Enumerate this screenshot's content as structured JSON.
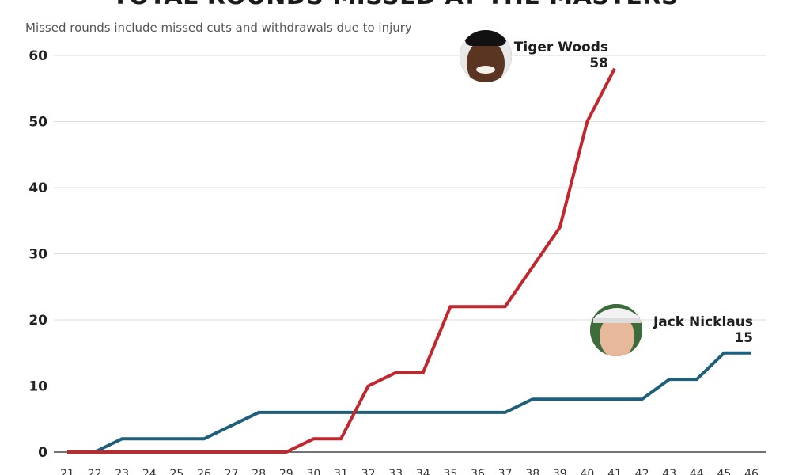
{
  "chart_data": {
    "type": "line",
    "title": "TOTAL ROUNDS MISSED AT THE MASTERS",
    "subtitle": "Missed rounds include missed cuts and withdrawals due to injury",
    "x": [
      21,
      22,
      23,
      24,
      25,
      26,
      27,
      28,
      29,
      30,
      31,
      32,
      33,
      34,
      35,
      36,
      37,
      38,
      39,
      40,
      41,
      42,
      43,
      44,
      45,
      46
    ],
    "ylim": [
      0,
      60
    ],
    "yticks": [
      0,
      10,
      20,
      30,
      40,
      50,
      60
    ],
    "grid": true,
    "series": [
      {
        "name": "Tiger Woods",
        "color": "#c1272d",
        "end_label": "58",
        "icon": "tiger-woods-avatar",
        "values": [
          0,
          0,
          0,
          0,
          0,
          0,
          0,
          0,
          0,
          2,
          2,
          10,
          12,
          12,
          22,
          22,
          22,
          28,
          34,
          50,
          58,
          null,
          null,
          null,
          null,
          null
        ]
      },
      {
        "name": "Jack Nicklaus",
        "color": "#1f5f7a",
        "end_label": "15",
        "icon": "jack-nicklaus-avatar",
        "values": [
          0,
          0,
          2,
          2,
          2,
          2,
          4,
          6,
          6,
          6,
          6,
          6,
          6,
          6,
          6,
          6,
          6,
          8,
          8,
          8,
          8,
          8,
          11,
          11,
          15,
          15
        ]
      }
    ]
  }
}
